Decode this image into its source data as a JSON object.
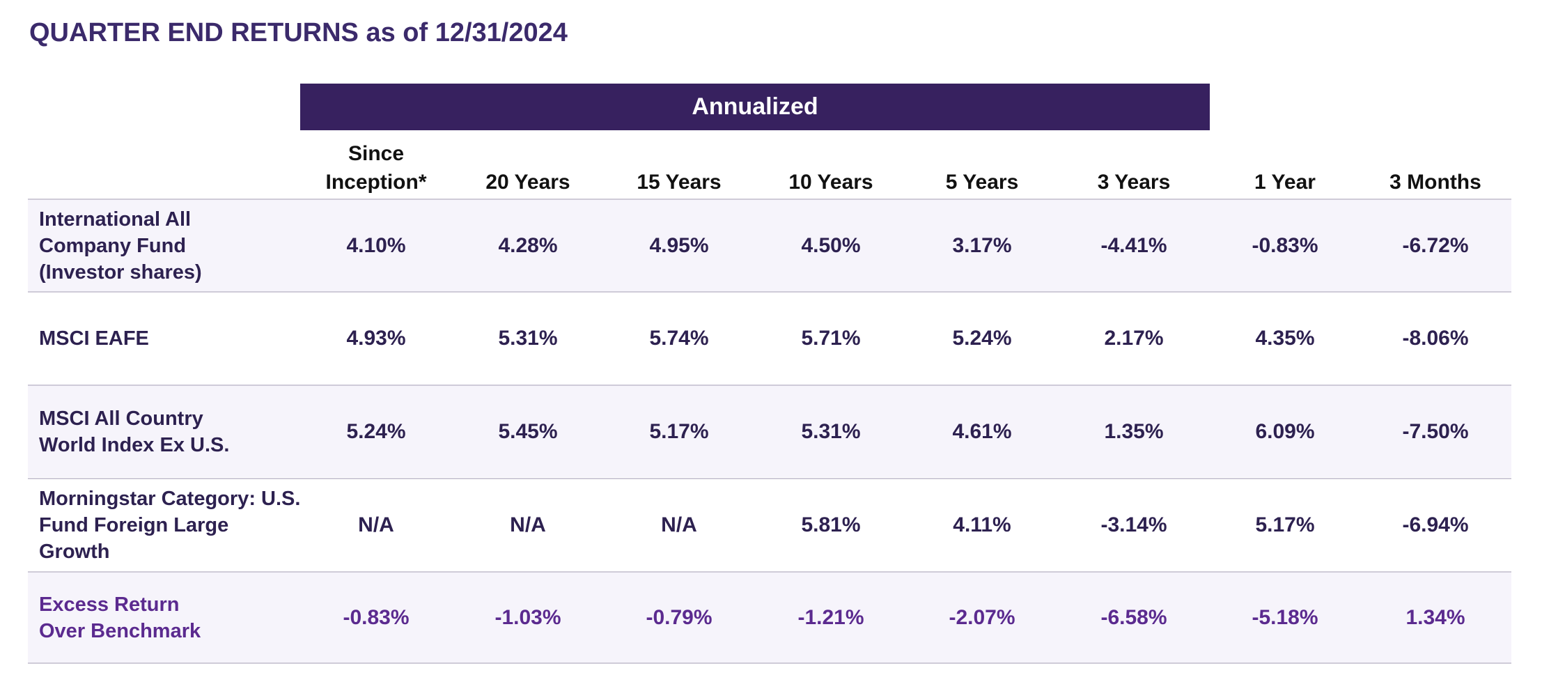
{
  "title": "QUARTER END RETURNS as of 12/31/2024",
  "annualized_label": "Annualized",
  "columns": [
    "Since\nInception*",
    "20 Years",
    "15 Years",
    "10 Years",
    "5 Years",
    "3 Years",
    "1 Year",
    "3 Months"
  ],
  "rows": [
    {
      "label": "International All\nCompany Fund\n(Investor shares)",
      "values": [
        "4.10%",
        "4.28%",
        "4.95%",
        "4.50%",
        "3.17%",
        "-4.41%",
        "-0.83%",
        "-6.72%"
      ]
    },
    {
      "label": "MSCI EAFE",
      "values": [
        "4.93%",
        "5.31%",
        "5.74%",
        "5.71%",
        "5.24%",
        "2.17%",
        "4.35%",
        "-8.06%"
      ]
    },
    {
      "label": "MSCI All Country\nWorld Index Ex U.S.",
      "values": [
        "5.24%",
        "5.45%",
        "5.17%",
        "5.31%",
        "4.61%",
        "1.35%",
        "6.09%",
        "-7.50%"
      ]
    },
    {
      "label": "Morningstar Category: U.S.\nFund Foreign Large Growth",
      "values": [
        "N/A",
        "N/A",
        "N/A",
        "5.81%",
        "4.11%",
        "-3.14%",
        "5.17%",
        "-6.94%"
      ]
    },
    {
      "label": "Excess Return\nOver Benchmark",
      "values": [
        "-0.83%",
        "-1.03%",
        "-0.79%",
        "-1.21%",
        "-2.07%",
        "-6.58%",
        "-5.18%",
        "1.34%"
      ]
    }
  ],
  "colors": {
    "title": "#3b2a6b",
    "banner_background": "#37215f",
    "row_text": "#2d2150",
    "excess_text": "#5b2a8f",
    "shaded_row": "#f6f4fb",
    "rule": "#cfcbd8"
  }
}
